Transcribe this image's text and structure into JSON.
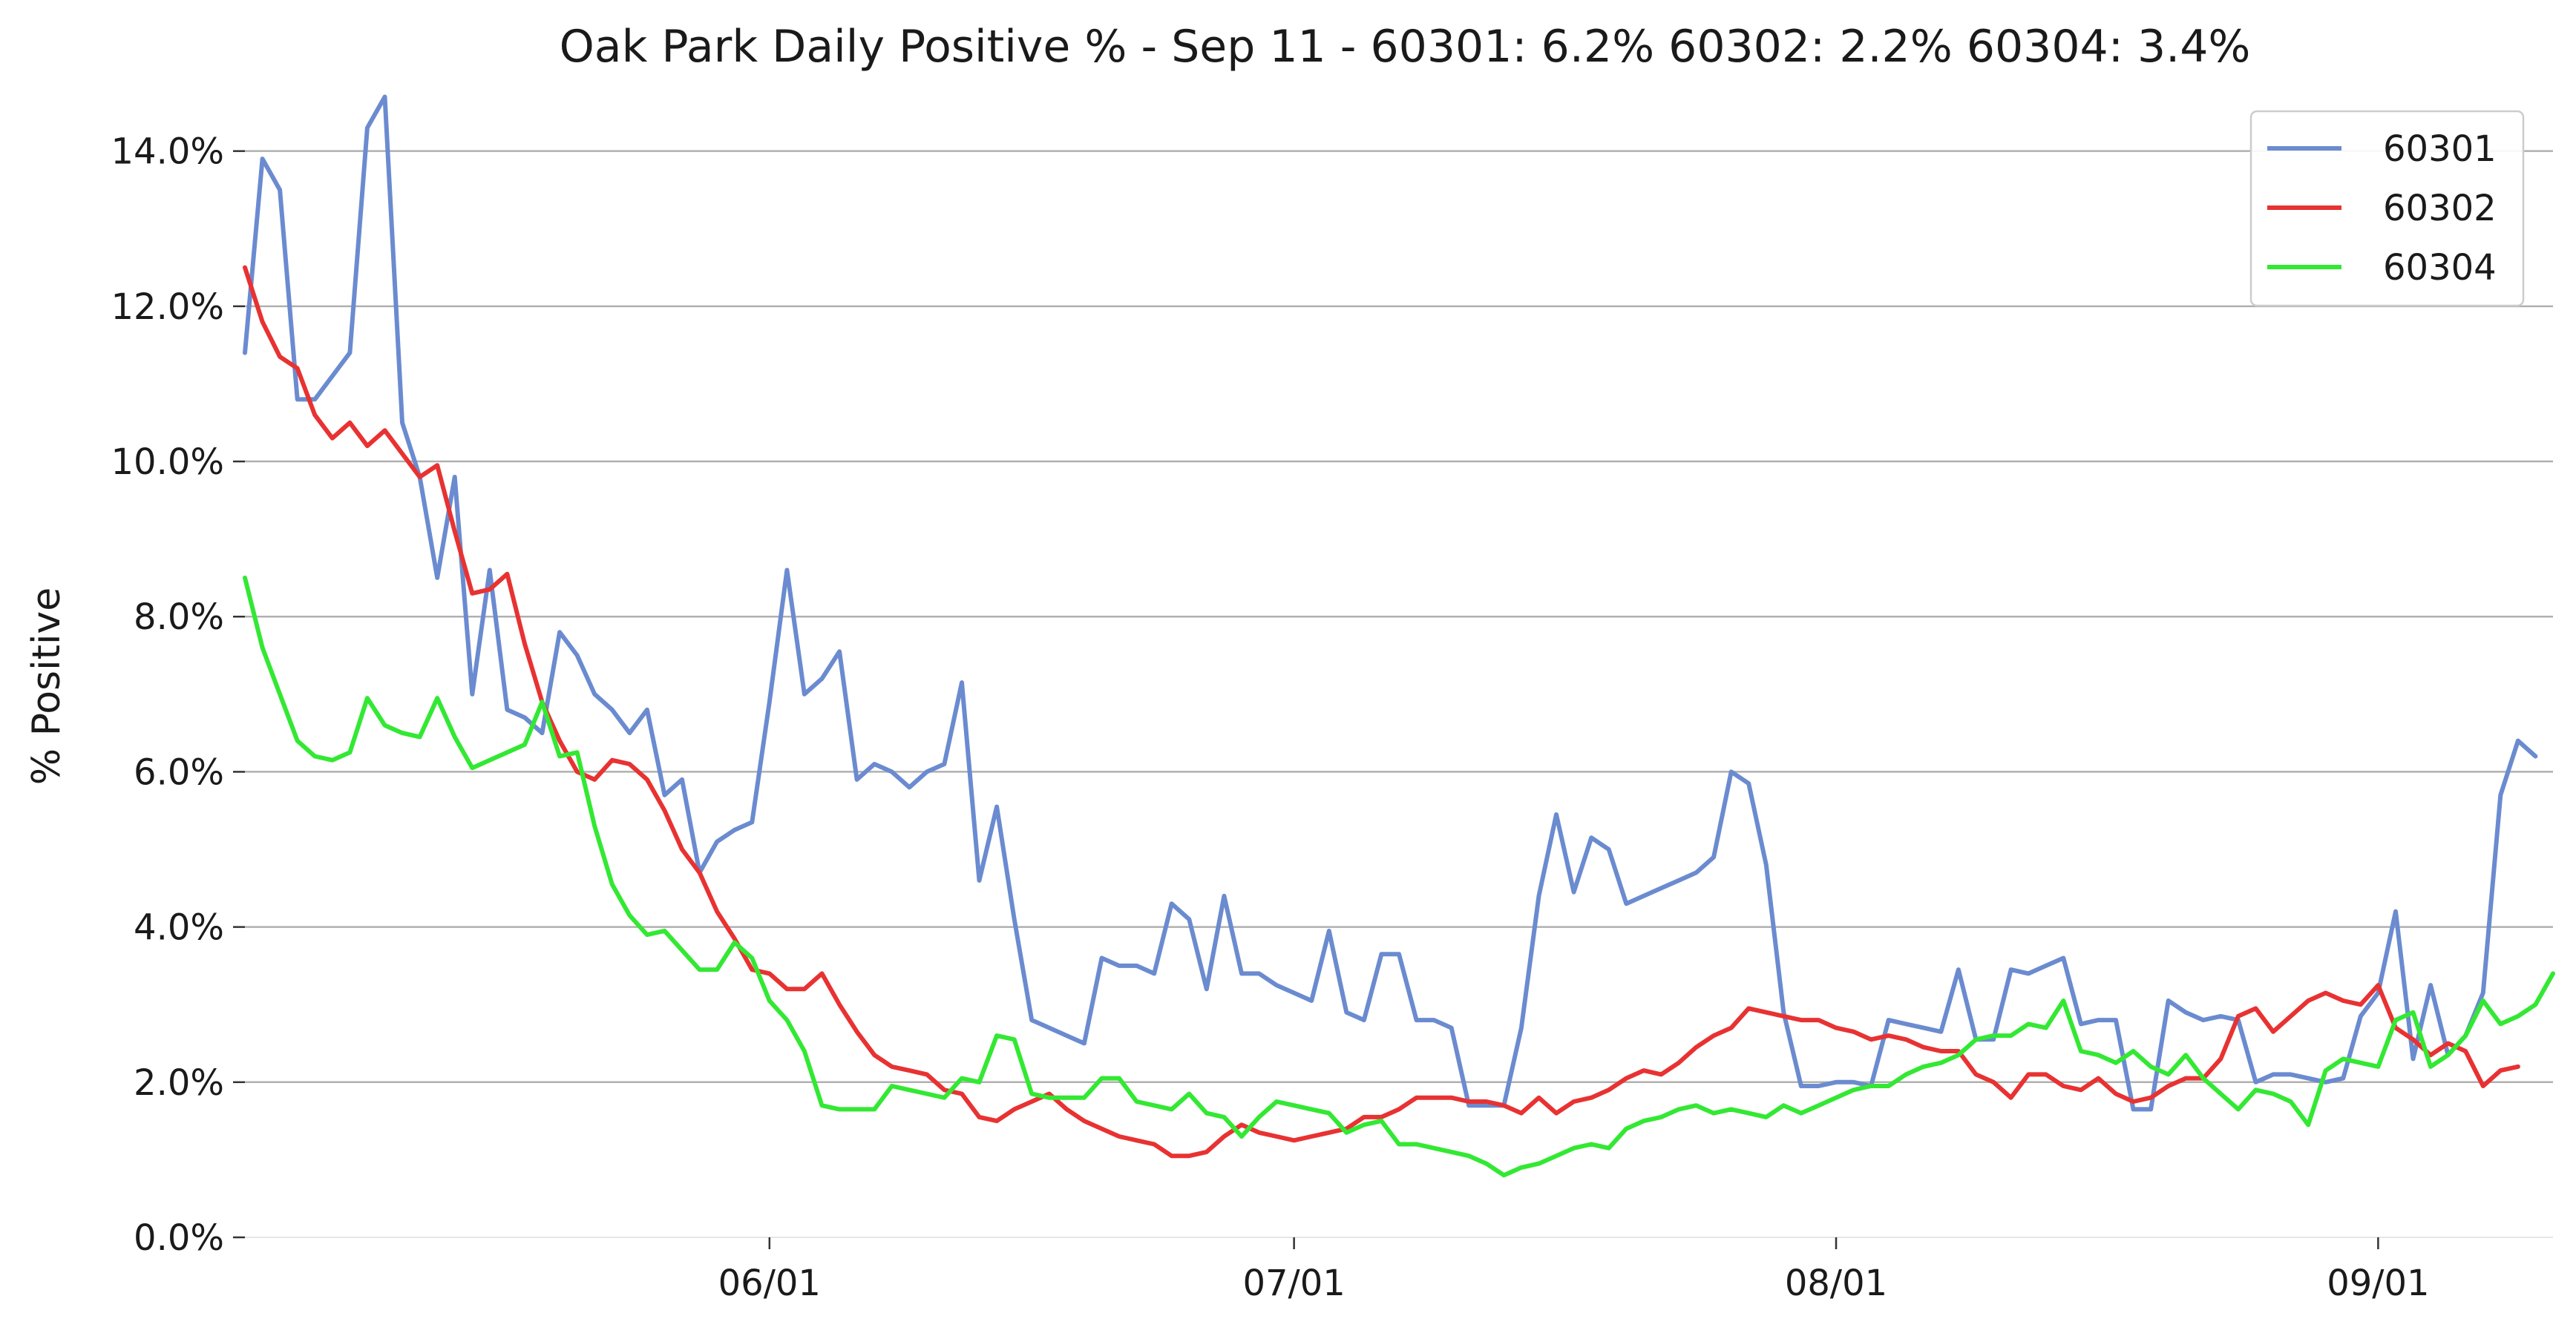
{
  "chart_data": {
    "type": "line",
    "title": "Oak Park Daily Positive % - Sep 11 - 60301: 6.2%  60302: 2.2%  60304: 3.4%",
    "xlabel": "",
    "ylabel": "% Positive",
    "x_start": "2020-05-02",
    "x_end": "2020-09-11",
    "xlim": [
      "2020-05-02",
      "2020-09-11"
    ],
    "ylim": [
      0,
      14.8
    ],
    "grid": "horizontal",
    "legend_position": "top-right",
    "xticks": [
      {
        "date": "2020-06-01",
        "label": "06/01"
      },
      {
        "date": "2020-07-01",
        "label": "07/01"
      },
      {
        "date": "2020-08-01",
        "label": "08/01"
      },
      {
        "date": "2020-09-01",
        "label": "09/01"
      }
    ],
    "yticks": [
      {
        "value": 0,
        "label": "0.0%"
      },
      {
        "value": 2,
        "label": "2.0%"
      },
      {
        "value": 4,
        "label": "4.0%"
      },
      {
        "value": 6,
        "label": "6.0%"
      },
      {
        "value": 8,
        "label": "8.0%"
      },
      {
        "value": 10,
        "label": "10.0%"
      },
      {
        "value": 12,
        "label": "12.0%"
      },
      {
        "value": 14,
        "label": "14.0%"
      }
    ],
    "series": [
      {
        "name": "60301",
        "color": "#6b8bd0",
        "values": [
          11.4,
          13.9,
          13.5,
          10.8,
          10.8,
          11.1,
          11.4,
          14.3,
          14.7,
          10.5,
          9.8,
          8.5,
          9.8,
          7.0,
          8.6,
          6.8,
          6.7,
          6.5,
          7.8,
          7.5,
          7.0,
          6.8,
          6.5,
          6.8,
          5.7,
          5.9,
          4.7,
          5.1,
          5.25,
          5.35,
          6.9,
          8.6,
          7.0,
          7.2,
          7.55,
          5.9,
          6.1,
          6.0,
          5.8,
          6.0,
          6.1,
          7.15,
          4.6,
          5.55,
          4.1,
          2.8,
          2.7,
          2.6,
          2.5,
          3.6,
          3.5,
          3.5,
          3.4,
          4.3,
          4.1,
          3.2,
          4.4,
          3.4,
          3.4,
          3.25,
          3.15,
          3.05,
          3.95,
          2.9,
          2.8,
          3.65,
          3.65,
          2.8,
          2.8,
          2.7,
          1.7,
          1.7,
          1.7,
          2.7,
          4.4,
          5.45,
          4.45,
          5.15,
          5.0,
          4.3,
          4.4,
          4.5,
          4.6,
          4.7,
          4.9,
          6.0,
          5.85,
          4.8,
          2.9,
          1.95,
          1.95,
          2.0,
          2.0,
          1.95,
          2.8,
          2.75,
          2.7,
          2.65,
          3.45,
          2.55,
          2.55,
          3.45,
          3.4,
          3.5,
          3.6,
          2.75,
          2.8,
          2.8,
          1.65,
          1.65,
          3.05,
          2.9,
          2.8,
          2.85,
          2.8,
          2.0,
          2.1,
          2.1,
          2.05,
          2.0,
          2.05,
          2.85,
          3.15,
          4.2,
          2.3,
          3.25,
          2.35,
          2.6,
          3.15,
          5.7,
          6.4,
          6.2
        ]
      },
      {
        "name": "60302",
        "color": "#e83232",
        "values": [
          12.5,
          11.8,
          11.35,
          11.2,
          10.6,
          10.3,
          10.5,
          10.2,
          10.4,
          10.1,
          9.8,
          9.95,
          9.1,
          8.3,
          8.35,
          8.55,
          7.65,
          6.9,
          6.4,
          6.0,
          5.9,
          6.15,
          6.1,
          5.9,
          5.5,
          5.0,
          4.7,
          4.2,
          3.85,
          3.45,
          3.4,
          3.2,
          3.2,
          3.4,
          3.0,
          2.65,
          2.35,
          2.2,
          2.15,
          2.1,
          1.9,
          1.85,
          1.55,
          1.5,
          1.65,
          1.75,
          1.85,
          1.65,
          1.5,
          1.4,
          1.3,
          1.25,
          1.2,
          1.05,
          1.05,
          1.1,
          1.3,
          1.45,
          1.35,
          1.3,
          1.25,
          1.3,
          1.35,
          1.4,
          1.55,
          1.55,
          1.65,
          1.8,
          1.8,
          1.8,
          1.75,
          1.75,
          1.7,
          1.6,
          1.8,
          1.6,
          1.75,
          1.8,
          1.9,
          2.05,
          2.15,
          2.1,
          2.25,
          2.45,
          2.6,
          2.7,
          2.95,
          2.9,
          2.85,
          2.8,
          2.8,
          2.7,
          2.65,
          2.55,
          2.6,
          2.55,
          2.45,
          2.4,
          2.4,
          2.1,
          2.0,
          1.8,
          2.1,
          2.1,
          1.95,
          1.9,
          2.05,
          1.85,
          1.75,
          1.8,
          1.95,
          2.05,
          2.05,
          2.3,
          2.85,
          2.95,
          2.65,
          2.85,
          3.05,
          3.15,
          3.05,
          3.0,
          3.25,
          2.7,
          2.55,
          2.35,
          2.5,
          2.4,
          1.95,
          2.15,
          2.2
        ]
      },
      {
        "name": "60304",
        "color": "#33e833",
        "values": [
          8.5,
          7.6,
          7.0,
          6.4,
          6.2,
          6.15,
          6.25,
          6.95,
          6.6,
          6.5,
          6.45,
          6.95,
          6.45,
          6.05,
          6.15,
          6.25,
          6.35,
          6.9,
          6.2,
          6.25,
          5.3,
          4.55,
          4.15,
          3.9,
          3.95,
          3.7,
          3.45,
          3.45,
          3.8,
          3.6,
          3.05,
          2.8,
          2.4,
          1.7,
          1.65,
          1.65,
          1.65,
          1.95,
          1.9,
          1.85,
          1.8,
          2.05,
          2.0,
          2.6,
          2.55,
          1.85,
          1.8,
          1.8,
          1.8,
          2.05,
          2.05,
          1.75,
          1.7,
          1.65,
          1.85,
          1.6,
          1.55,
          1.3,
          1.55,
          1.75,
          1.7,
          1.65,
          1.6,
          1.35,
          1.45,
          1.5,
          1.2,
          1.2,
          1.15,
          1.1,
          1.05,
          0.95,
          0.8,
          0.9,
          0.95,
          1.05,
          1.15,
          1.2,
          1.15,
          1.4,
          1.5,
          1.55,
          1.65,
          1.7,
          1.6,
          1.65,
          1.6,
          1.55,
          1.7,
          1.6,
          1.7,
          1.8,
          1.9,
          1.95,
          1.95,
          2.1,
          2.2,
          2.25,
          2.35,
          2.55,
          2.6,
          2.6,
          2.75,
          2.7,
          3.05,
          2.4,
          2.35,
          2.25,
          2.4,
          2.2,
          2.1,
          2.35,
          2.05,
          1.85,
          1.65,
          1.9,
          1.85,
          1.75,
          1.45,
          2.15,
          2.3,
          2.25,
          2.2,
          2.8,
          2.9,
          2.2,
          2.35,
          2.6,
          3.05,
          2.75,
          2.85,
          3.0,
          3.4
        ]
      }
    ]
  }
}
